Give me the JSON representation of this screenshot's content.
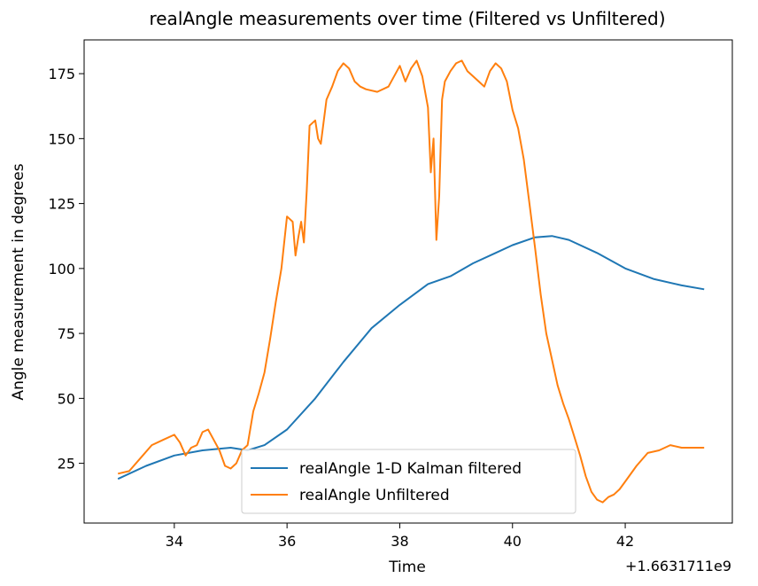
{
  "chart_data": {
    "type": "line",
    "title": "realAngle measurements over time (Filtered vs Unfiltered)",
    "xlabel": "Time",
    "ylabel": "Angle measurement in degrees",
    "x_offset_label": "+1.6631711e9",
    "xlim": [
      32.4,
      43.9
    ],
    "ylim": [
      2,
      188
    ],
    "xticks": [
      34,
      36,
      38,
      40,
      42
    ],
    "xtick_labels": [
      "34",
      "36",
      "38",
      "40",
      "42"
    ],
    "yticks": [
      25,
      50,
      75,
      100,
      125,
      150,
      175
    ],
    "ytick_labels": [
      "25",
      "50",
      "75",
      "100",
      "125",
      "150",
      "175"
    ],
    "grid": false,
    "legend_position": "lower-center",
    "series": [
      {
        "name": "realAngle 1-D Kalman filtered",
        "color": "#1f77b4",
        "x": [
          33.0,
          33.5,
          34.0,
          34.5,
          35.0,
          35.3,
          35.6,
          36.0,
          36.5,
          37.0,
          37.5,
          38.0,
          38.5,
          38.9,
          39.3,
          39.7,
          40.0,
          40.4,
          40.7,
          41.0,
          41.5,
          42.0,
          42.5,
          43.0,
          43.4
        ],
        "y": [
          19,
          24,
          28,
          30,
          31,
          30,
          32,
          38,
          50,
          64,
          77,
          86,
          94,
          97,
          102,
          106,
          109,
          112,
          112.5,
          111,
          106,
          100,
          96,
          93.5,
          92
        ]
      },
      {
        "name": "realAngle Unfiltered",
        "color": "#ff7f0e",
        "x": [
          33.0,
          33.2,
          33.4,
          33.6,
          33.8,
          34.0,
          34.1,
          34.2,
          34.3,
          34.4,
          34.5,
          34.6,
          34.7,
          34.8,
          34.9,
          35.0,
          35.1,
          35.2,
          35.3,
          35.4,
          35.5,
          35.6,
          35.7,
          35.8,
          35.9,
          36.0,
          36.1,
          36.15,
          36.2,
          36.25,
          36.3,
          36.35,
          36.4,
          36.5,
          36.55,
          36.6,
          36.7,
          36.8,
          36.9,
          37.0,
          37.1,
          37.2,
          37.3,
          37.4,
          37.6,
          37.8,
          38.0,
          38.1,
          38.2,
          38.3,
          38.4,
          38.5,
          38.55,
          38.6,
          38.65,
          38.7,
          38.75,
          38.8,
          38.9,
          39.0,
          39.1,
          39.2,
          39.3,
          39.4,
          39.5,
          39.6,
          39.7,
          39.8,
          39.9,
          40.0,
          40.1,
          40.2,
          40.3,
          40.4,
          40.5,
          40.6,
          40.7,
          40.8,
          40.9,
          41.0,
          41.1,
          41.2,
          41.3,
          41.4,
          41.5,
          41.6,
          41.7,
          41.8,
          41.9,
          42.0,
          42.2,
          42.4,
          42.6,
          42.8,
          43.0,
          43.2,
          43.4
        ],
        "y": [
          21,
          22,
          27,
          32,
          34,
          36,
          33,
          28,
          31,
          32,
          37,
          38,
          34,
          30,
          24,
          23,
          25,
          30,
          32,
          45,
          52,
          60,
          73,
          87,
          100,
          120,
          118,
          105,
          112,
          118,
          110,
          130,
          155,
          157,
          150,
          148,
          165,
          170,
          176,
          179,
          177,
          172,
          170,
          169,
          168,
          170,
          178,
          172,
          177,
          180,
          174,
          162,
          137,
          150,
          111,
          128,
          165,
          172,
          176,
          179,
          180,
          176,
          174,
          172,
          170,
          176,
          179,
          177,
          172,
          161,
          154,
          142,
          125,
          108,
          90,
          75,
          65,
          55,
          48,
          42,
          35,
          28,
          20,
          14,
          11,
          10,
          12,
          13,
          15,
          18,
          24,
          29,
          30,
          32,
          31,
          31,
          31
        ]
      }
    ]
  }
}
